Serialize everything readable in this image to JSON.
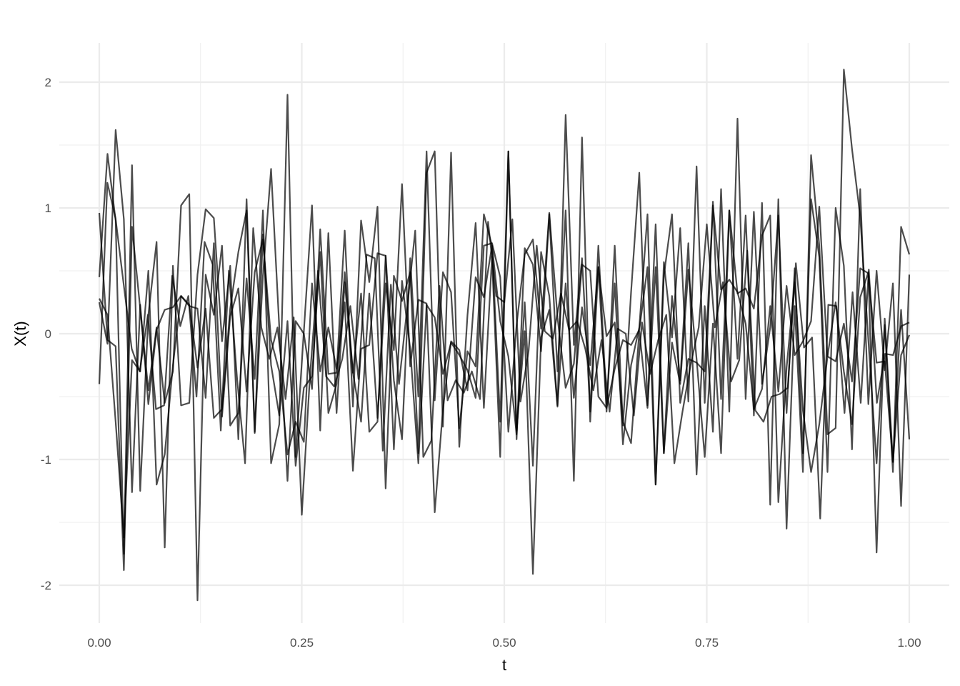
{
  "chart_data": {
    "type": "line",
    "title": "",
    "xlabel": "t",
    "ylabel": "X(t)",
    "xlim": [
      0,
      1
    ],
    "ylim": [
      -2.12,
      2.1
    ],
    "x_ticks": [
      "0.00",
      "0.25",
      "0.50",
      "0.75",
      "1.00"
    ],
    "y_ticks": [
      "-2",
      "-1",
      "0",
      "1",
      "2"
    ],
    "grid": true,
    "legend": "none",
    "line_color": "#000000",
    "line_opacity": 0.7,
    "x_spacing": "evenly spaced from 0 to 1",
    "series": [
      {
        "values": [
          0.96,
          -0.05,
          -0.1,
          -1.88,
          0.85,
          0.2,
          -0.45,
          0.05,
          -0.55,
          -0.3,
          1.02,
          1.11,
          -2.12,
          0.47,
          0.15,
          0.7,
          -0.73,
          -0.63,
          0.44,
          -0.36,
          0.98,
          -1.03,
          -0.72,
          1.9,
          -0.98,
          0.02,
          1.02,
          -0.77,
          0.8,
          -0.63,
          0.41,
          -0.31,
          0.32,
          -0.78,
          -0.7,
          0.62,
          -0.37,
          -0.84,
          0.6,
          -0.5,
          1.45,
          -0.53,
          0.49,
          0.33,
          -0.75,
          -0.14,
          -0.26,
          0.95,
          0.7,
          -0.7,
          1.45,
          -0.77,
          0.02,
          -1.91,
          -0.03,
          0.19,
          -0.58,
          1.74,
          -0.09,
          0.6,
          -0.62,
          0.7,
          -0.56,
          0.4,
          -0.88,
          -0.25,
          0.05,
          0.95,
          -1.2,
          0.57,
          -0.03,
          0.84,
          -0.54,
          1.33,
          -0.55,
          1.05,
          -0.52,
          0.98,
          -0.2,
          0.94,
          -0.65,
          1.04,
          -1.36,
          1.07,
          -1.55,
          0.22,
          -1.1,
          1.42,
          0.7,
          -0.8,
          -0.75,
          2.1,
          1.47,
          0.93,
          -0.05,
          -1.03,
          0.07,
          -1.1,
          0.85,
          0.63
        ]
      },
      {
        "values": [
          0.45,
          1.43,
          0.9,
          -1.75,
          1.34,
          -1.25,
          0.15,
          0.73,
          -1.7,
          0.54,
          -0.57,
          -0.55,
          0.47,
          0.99,
          0.92,
          -0.06,
          0.54,
          -0.84,
          1.07,
          -0.78,
          0.46,
          1.31,
          0.05,
          -1.17,
          0.1,
          0.0,
          -0.44,
          0.83,
          -0.32,
          -0.31,
          0.82,
          -0.58,
          0.9,
          0.41,
          1.01,
          -1.23,
          0.46,
          0.26,
          0.49,
          -0.95,
          1.28,
          1.45,
          -0.74,
          1.44,
          -0.9,
          0.15,
          0.88,
          -0.59,
          0.61,
          -0.98,
          1.45,
          -0.84,
          0.68,
          0.55,
          -0.14,
          0.95,
          -0.3,
          0.98,
          -1.17,
          1.56,
          -0.7,
          0.53,
          -0.62,
          0.7,
          -0.73,
          0.33,
          1.28,
          -0.57,
          0.87,
          -0.95,
          0.3,
          -0.37,
          0.72,
          -1.12,
          0.22,
          -0.78,
          1.15,
          -0.62,
          1.71,
          -0.52,
          0.97,
          -0.4,
          0.05,
          0.94,
          -0.63,
          0.52,
          -0.95,
          1.07,
          0.61,
          -1.1,
          1.0,
          0.54,
          -0.92,
          1.15,
          -0.56,
          0.5,
          -0.29,
          0.4,
          -1.37,
          0.47
        ]
      },
      {
        "values": [
          0.28,
          0.15,
          -0.7,
          -1.62,
          -0.21,
          -0.3,
          0.5,
          -1.2,
          -0.96,
          -0.25,
          0.3,
          0.23,
          -0.27,
          0.2,
          -0.67,
          -0.6,
          0.2,
          0.65,
          0.98,
          -0.79,
          0.79,
          -0.25,
          -0.65,
          0.1,
          -1.05,
          -0.43,
          -0.34,
          0.65,
          -0.63,
          -0.4,
          0.49,
          -0.31,
          -0.7,
          0.32,
          -0.67,
          0.4,
          -0.13,
          1.19,
          -0.26,
          0.27,
          0.24,
          -1.42,
          -0.6,
          -0.06,
          -0.13,
          -0.45,
          0.45,
          0.29,
          0.7,
          0.1,
          -0.18,
          -0.8,
          0.25,
          -1.05,
          0.65,
          0.3,
          -0.57,
          0.4,
          -0.51,
          0.21,
          -0.25,
          0.53,
          -0.02,
          0.09,
          -0.7,
          -0.87,
          0.02,
          -0.59,
          0.53,
          -0.95,
          -0.07,
          -0.4,
          0.51,
          -0.2,
          -0.98,
          0.08,
          -0.95,
          0.98,
          0.32,
          0.36,
          0.2,
          0.78,
          0.94,
          -1.34,
          -0.27,
          0.41,
          -0.61,
          -1.1,
          -0.72,
          -0.18,
          0.25,
          -0.3,
          -0.72,
          0.29,
          0.49,
          -1.74,
          0.12,
          -1.02,
          0.19,
          -0.84
        ]
      },
      {
        "values": [
          0.25,
          -0.08,
          1.62,
          0.91,
          -1.26,
          0.23,
          -0.56,
          0.03,
          0.19,
          0.21,
          0.3,
          0.22,
          0.2,
          -0.51,
          0.72,
          -0.66,
          0.14,
          0.36,
          -0.46,
          0.49,
          0.75,
          -0.05,
          -0.3,
          -0.96,
          -0.7,
          -0.86,
          0.4,
          -0.3,
          0.05,
          -0.28,
          0.25,
          -1.09,
          -0.12,
          -0.09,
          0.64,
          0.62,
          -0.92,
          0.42,
          -0.12,
          -1.03,
          0.23,
          0.13,
          -0.32,
          -0.07,
          -0.17,
          -0.29,
          -0.51,
          0.7,
          0.72,
          0.45,
          -0.78,
          0.07,
          0.63,
          0.75,
          0.04,
          0.96,
          0.13,
          -0.43,
          -0.24,
          0.55,
          0.5,
          -0.5,
          -0.59,
          -0.28,
          -0.05,
          -0.09,
          0.03,
          0.53,
          -1.2,
          0.46,
          0.95,
          -0.55,
          -0.2,
          -0.23,
          -0.3,
          1.02,
          0.35,
          0.43,
          0.33,
          0.08,
          -0.6,
          -0.44,
          0.22,
          -0.46,
          0.38,
          -0.17,
          -0.06,
          0.1,
          1.01,
          -0.18,
          -0.22,
          0.08,
          -0.38,
          0.52,
          0.48,
          -0.23,
          -0.22,
          -1.02,
          -0.17,
          -0.01
        ]
      },
      {
        "values": [
          -0.4,
          1.2,
          0.92,
          0.4,
          -0.12,
          -0.3,
          0.15,
          -0.6,
          -0.57,
          0.46,
          0.06,
          0.3,
          -0.5,
          0.73,
          0.55,
          -0.77,
          0.5,
          -0.35,
          -1.03,
          0.84,
          0.05,
          -0.2,
          0.05,
          -0.52,
          0.13,
          -1.44,
          -0.35,
          0.5,
          -0.34,
          -0.42,
          -0.2,
          0.22,
          -0.36,
          0.63,
          0.6,
          -0.93,
          0.39,
          -0.4,
          0.2,
          0.82,
          -0.98,
          -0.85,
          0.38,
          -0.53,
          -0.37,
          -0.47,
          -0.3,
          -0.52,
          0.89,
          0.3,
          0.25,
          0.91,
          -0.54,
          -0.14,
          0.7,
          0.02,
          -0.04,
          0.32,
          0.03,
          0.1,
          -0.12,
          -0.45,
          -0.05,
          -0.62,
          0.04,
          0.0,
          -0.65,
          0.09,
          -0.32,
          -0.05,
          0.15,
          -1.03,
          -0.62,
          -0.25,
          0.05,
          0.87,
          0.05,
          0.41,
          -0.38,
          -0.21,
          0.66,
          -0.61,
          -0.7,
          -0.5,
          -0.48,
          -0.43,
          0.56,
          -0.11,
          -0.03,
          -1.47,
          0.23,
          0.22,
          -0.63,
          0.33,
          -0.55,
          0.51,
          -0.55,
          -0.16,
          -0.17,
          0.06,
          0.09
        ]
      }
    ]
  }
}
